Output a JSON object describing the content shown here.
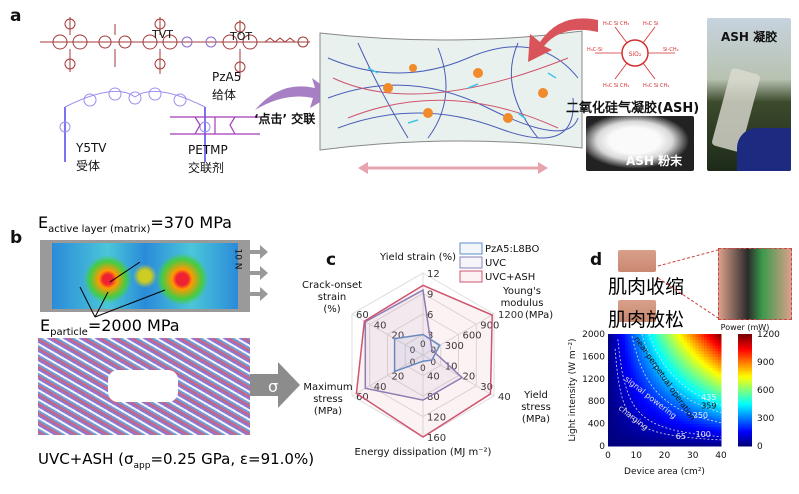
{
  "panel_labels": {
    "a": "a",
    "b": "b",
    "c": "c",
    "d": "d"
  },
  "panel_a": {
    "tvt": "TVT",
    "tot": "TOT",
    "donor_name": "PzA5",
    "donor_role": "给体",
    "acceptor_name": "Y5TV",
    "acceptor_role": "受体",
    "crosslinker_name": "PETMP",
    "crosslinker_role": "交联剂",
    "click_label": "‘点击’ 交联",
    "aerogel_label": "二氧化硅气凝胶(ASH)",
    "sio2": "SiO₂",
    "powder_label": "ASH 粉末",
    "gel_label": "ASH 凝胶",
    "colors": {
      "donor": "#a33a3a",
      "acceptor": "#9d8ff0",
      "crosslinker": "#a23cb8",
      "aerogel": "#d32f2f"
    }
  },
  "panel_b": {
    "e_active": "E",
    "e_active_sub": "active layer (matrix)",
    "e_active_val": "=370 MPa",
    "e_particle": "E",
    "e_particle_sub": "particle",
    "e_particle_val": "=2000 MPa",
    "force": "10 N",
    "sigma": "σ",
    "caption_pre": "UVC+ASH (σ",
    "caption_sub": "app",
    "caption_post": "=0.25 GPa, ε=91.0%)"
  },
  "chart_data": [
    {
      "type": "radar",
      "axes": [
        {
          "label": "Yield strain (%)",
          "ticks": [
            "3",
            "6",
            "9",
            "12"
          ],
          "max": 12
        },
        {
          "label": "Young's modulus (MPa)",
          "ticks": [
            "300",
            "600",
            "900",
            "1200"
          ],
          "max": 1200
        },
        {
          "label": "Yield stress (MPa)",
          "ticks": [
            "10",
            "20",
            "30",
            "40"
          ],
          "max": 40
        },
        {
          "label": "Energy dissipation (MJ m⁻²)",
          "ticks": [
            "40",
            "80",
            "120",
            "160"
          ],
          "max": 160
        },
        {
          "label": "Maximum stress (MPa)",
          "ticks": [
            "20",
            "40",
            "60"
          ],
          "max": 60
        },
        {
          "label": "Crack-onset strain (%)",
          "ticks": [
            "20",
            "40",
            "60"
          ],
          "max": 60
        }
      ],
      "zero_label": "0",
      "series": [
        {
          "name": "PzA5:L8BO",
          "color": "#5b8fc9",
          "values": [
            3,
            280,
            5,
            12,
            12,
            12
          ]
        },
        {
          "name": "UVC",
          "color": "#8a7fb8",
          "values": [
            9.5,
            150,
            22,
            88,
            45,
            45
          ]
        },
        {
          "name": "UVC+ASH",
          "color": "#d0546e",
          "values": [
            10.2,
            1170,
            38,
            160,
            55,
            46
          ]
        }
      ],
      "legend": "top-right"
    },
    {
      "type": "heatmap",
      "xlabel": "Device area (cm²)",
      "ylabel": "Light intensity (W m⁻²)",
      "xlim": [
        0,
        40
      ],
      "ylim": [
        0,
        2000
      ],
      "xticks": [
        "0",
        "10",
        "20",
        "30",
        "40"
      ],
      "yticks": [
        "0",
        "400",
        "800",
        "1200",
        "1600",
        "2000"
      ],
      "colorbar_title": "Power (mW)",
      "colorbar_ticks": [
        "0",
        "300",
        "600",
        "900",
        "1200"
      ],
      "colorbar_range": [
        0,
        1200
      ],
      "colormap": "jet",
      "contours": [
        65,
        100,
        250,
        359,
        435
      ],
      "contour_labels": [
        "65",
        "100",
        "250",
        "359",
        "435"
      ],
      "regions": [
        "charging",
        "signal powering",
        "near-perpetual operation"
      ]
    }
  ],
  "panel_d": {
    "contract": "肌肉收缩",
    "relax": "肌肉放松"
  }
}
